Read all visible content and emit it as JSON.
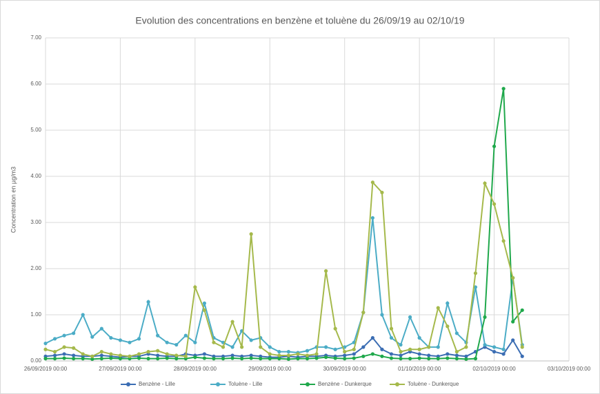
{
  "chart_data": {
    "type": "line",
    "title": "Evolution  des concentrations en benzène et toluène du 26/09/19 au 02/10/19",
    "y_label": "Concentration en µg/m3",
    "x": [
      "2019-09-26T00:00",
      "2019-09-26T03:00",
      "2019-09-26T06:00",
      "2019-09-26T09:00",
      "2019-09-26T12:00",
      "2019-09-26T15:00",
      "2019-09-26T18:00",
      "2019-09-26T21:00",
      "2019-09-27T00:00",
      "2019-09-27T03:00",
      "2019-09-27T06:00",
      "2019-09-27T09:00",
      "2019-09-27T12:00",
      "2019-09-27T15:00",
      "2019-09-27T18:00",
      "2019-09-27T21:00",
      "2019-09-28T00:00",
      "2019-09-28T03:00",
      "2019-09-28T06:00",
      "2019-09-28T09:00",
      "2019-09-28T12:00",
      "2019-09-28T15:00",
      "2019-09-28T18:00",
      "2019-09-28T21:00",
      "2019-09-29T00:00",
      "2019-09-29T03:00",
      "2019-09-29T06:00",
      "2019-09-29T09:00",
      "2019-09-29T12:00",
      "2019-09-29T15:00",
      "2019-09-29T18:00",
      "2019-09-29T21:00",
      "2019-09-30T00:00",
      "2019-09-30T03:00",
      "2019-09-30T06:00",
      "2019-09-30T09:00",
      "2019-09-30T12:00",
      "2019-09-30T15:00",
      "2019-09-30T18:00",
      "2019-09-30T21:00",
      "2019-10-01T00:00",
      "2019-10-01T03:00",
      "2019-10-01T06:00",
      "2019-10-01T09:00",
      "2019-10-01T12:00",
      "2019-10-01T15:00",
      "2019-10-01T18:00",
      "2019-10-01T21:00",
      "2019-10-02T00:00",
      "2019-10-02T03:00",
      "2019-10-02T06:00",
      "2019-10-02T09:00"
    ],
    "series": [
      {
        "name": "Benzène - Lille",
        "color": "#3b6db3",
        "values": [
          0.1,
          0.12,
          0.15,
          0.12,
          0.1,
          0.1,
          0.12,
          0.1,
          0.08,
          0.1,
          0.1,
          0.15,
          0.12,
          0.1,
          0.1,
          0.15,
          0.12,
          0.15,
          0.1,
          0.1,
          0.12,
          0.1,
          0.12,
          0.1,
          0.08,
          0.08,
          0.1,
          0.08,
          0.1,
          0.1,
          0.12,
          0.1,
          0.12,
          0.15,
          0.3,
          0.5,
          0.25,
          0.15,
          0.12,
          0.2,
          0.15,
          0.12,
          0.1,
          0.15,
          0.12,
          0.1,
          0.2,
          0.3,
          0.2,
          0.15,
          0.45,
          0.1
        ]
      },
      {
        "name": "Toluène - Lille",
        "color": "#4bacc6",
        "values": [
          0.38,
          0.48,
          0.55,
          0.6,
          1.0,
          0.52,
          0.7,
          0.5,
          0.45,
          0.4,
          0.48,
          1.28,
          0.55,
          0.4,
          0.35,
          0.55,
          0.4,
          1.25,
          0.5,
          0.4,
          0.3,
          0.65,
          0.45,
          0.5,
          0.3,
          0.2,
          0.2,
          0.18,
          0.22,
          0.3,
          0.3,
          0.25,
          0.3,
          0.4,
          1.05,
          3.1,
          1.0,
          0.5,
          0.35,
          0.95,
          0.5,
          0.3,
          0.3,
          1.25,
          0.6,
          0.4,
          1.6,
          0.35,
          0.3,
          0.25,
          1.8,
          0.35
        ]
      },
      {
        "name": "Benzène - Dunkerque",
        "color": "#1fa84b",
        "values": [
          0.05,
          0.05,
          0.06,
          0.05,
          0.05,
          0.04,
          0.05,
          0.06,
          0.05,
          0.05,
          0.06,
          0.05,
          0.05,
          0.06,
          0.05,
          0.05,
          0.08,
          0.06,
          0.05,
          0.05,
          0.06,
          0.05,
          0.06,
          0.05,
          0.05,
          0.05,
          0.04,
          0.05,
          0.05,
          0.06,
          0.08,
          0.06,
          0.05,
          0.06,
          0.1,
          0.15,
          0.1,
          0.06,
          0.05,
          0.05,
          0.06,
          0.05,
          0.05,
          0.06,
          0.05,
          0.04,
          0.05,
          0.95,
          4.65,
          5.9,
          0.85,
          1.1
        ]
      },
      {
        "name": "Toluène - Dunkerque",
        "color": "#a5b94b",
        "values": [
          0.25,
          0.2,
          0.3,
          0.28,
          0.15,
          0.1,
          0.2,
          0.15,
          0.12,
          0.1,
          0.15,
          0.2,
          0.22,
          0.15,
          0.12,
          0.1,
          1.6,
          1.1,
          0.4,
          0.3,
          0.85,
          0.3,
          2.75,
          0.3,
          0.15,
          0.12,
          0.12,
          0.15,
          0.12,
          0.15,
          1.95,
          0.7,
          0.2,
          0.25,
          1.05,
          3.87,
          3.65,
          0.7,
          0.2,
          0.25,
          0.25,
          0.3,
          1.15,
          0.75,
          0.2,
          0.3,
          1.9,
          3.85,
          3.4,
          2.6,
          1.8,
          0.3
        ]
      }
    ],
    "xlim": [
      "2019-09-26T00:00",
      "2019-10-03T00:00"
    ],
    "xticks": [
      {
        "value": "2019-09-26T00:00",
        "label": "26/09/2019 00:00"
      },
      {
        "value": "2019-09-27T00:00",
        "label": "27/09/2019 00:00"
      },
      {
        "value": "2019-09-28T00:00",
        "label": "28/09/2019 00:00"
      },
      {
        "value": "2019-09-29T00:00",
        "label": "29/09/2019 00:00"
      },
      {
        "value": "2019-09-30T00:00",
        "label": "30/09/2019 00:00"
      },
      {
        "value": "2019-10-01T00:00",
        "label": "01/10/2019 00:00"
      },
      {
        "value": "2019-10-02T00:00",
        "label": "02/10/2019 00:00"
      },
      {
        "value": "2019-10-03T00:00",
        "label": "03/10/2019 00:00"
      }
    ],
    "ylim": [
      0,
      7
    ],
    "yticks": [
      {
        "value": 0,
        "label": "0.00"
      },
      {
        "value": 1,
        "label": "1.00"
      },
      {
        "value": 2,
        "label": "2.00"
      },
      {
        "value": 3,
        "label": "3.00"
      },
      {
        "value": 4,
        "label": "4.00"
      },
      {
        "value": 5,
        "label": "5.00"
      },
      {
        "value": 6,
        "label": "6.00"
      },
      {
        "value": 7,
        "label": "7.00"
      }
    ],
    "grid": true,
    "legend": "bottom"
  }
}
